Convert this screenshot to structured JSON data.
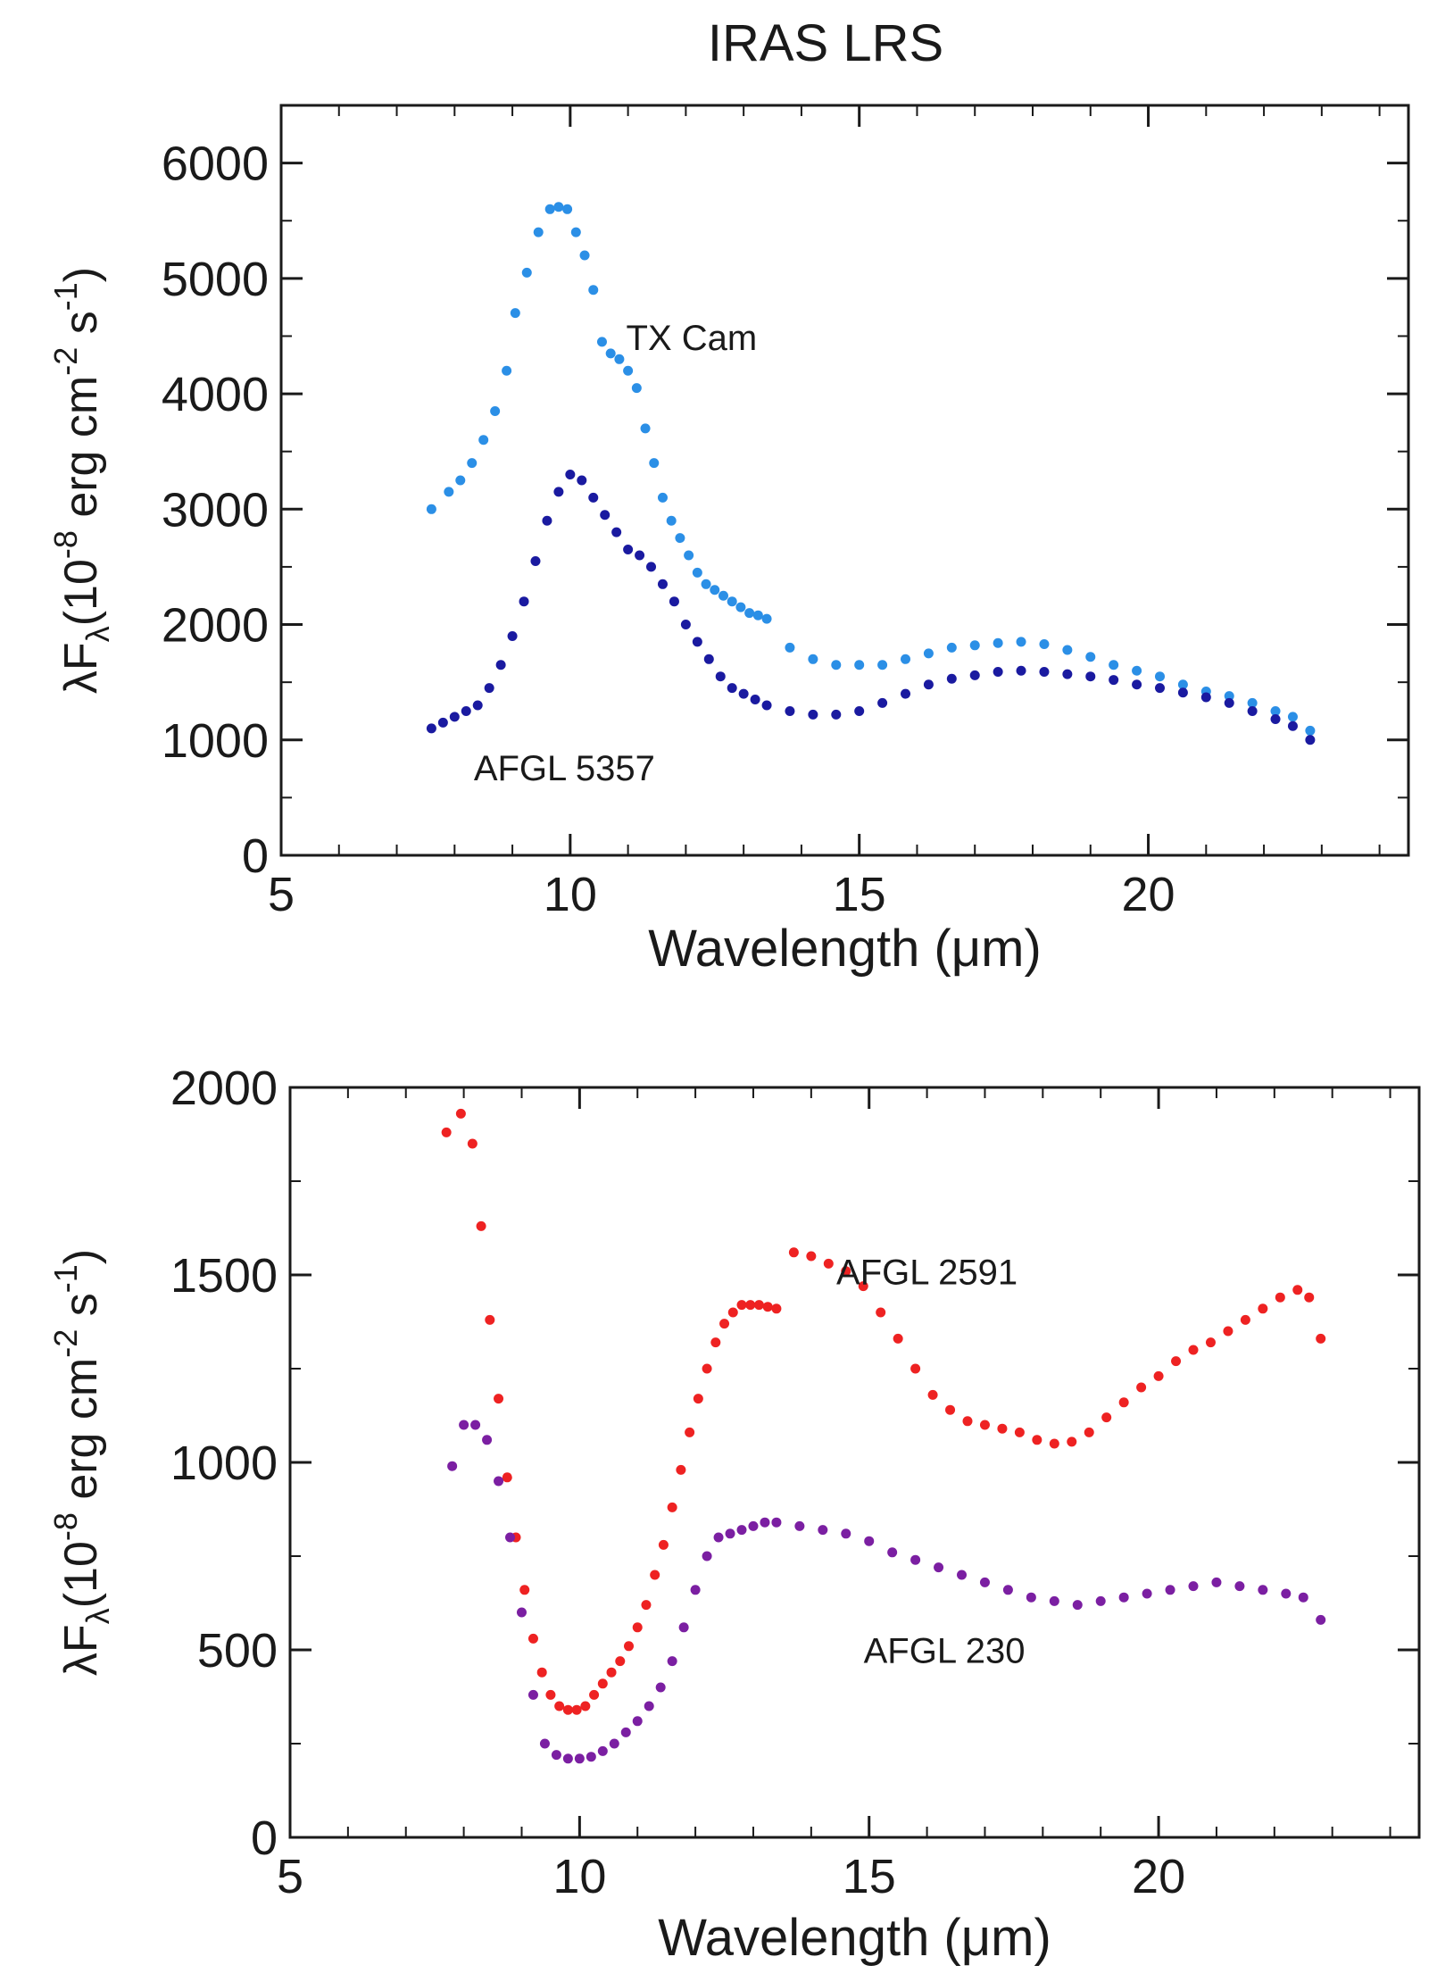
{
  "figure_title": "IRAS LRS",
  "chart_data": [
    {
      "type": "scatter",
      "xlabel": "Wavelength (μm)",
      "ylabel": {
        "prefix": "λF",
        "sub": "λ",
        "open": "(10",
        "sup1": "-8",
        "mid": " erg cm",
        "sup2": "-2",
        "mid2": " s",
        "sup3": "-1",
        "close": ")"
      },
      "xlim": [
        5,
        24.5
      ],
      "ylim": [
        0,
        6500
      ],
      "x_ticks": [
        5,
        10,
        15,
        20
      ],
      "y_ticks": [
        0,
        1000,
        2000,
        3000,
        4000,
        5000,
        6000
      ],
      "x_minor": 1,
      "y_minor": 500,
      "series": [
        {
          "name": "TX Cam",
          "color": "#2b8fe6",
          "x": [
            7.6,
            7.9,
            8.1,
            8.3,
            8.5,
            8.7,
            8.9,
            9.05,
            9.25,
            9.45,
            9.65,
            9.8,
            9.95,
            10.1,
            10.25,
            10.4,
            10.55,
            10.7,
            10.85,
            11.0,
            11.15,
            11.3,
            11.45,
            11.6,
            11.75,
            11.9,
            12.05,
            12.2,
            12.35,
            12.5,
            12.65,
            12.8,
            12.95,
            13.1,
            13.25,
            13.4,
            13.8,
            14.2,
            14.6,
            15.0,
            15.4,
            15.8,
            16.2,
            16.6,
            17.0,
            17.4,
            17.8,
            18.2,
            18.6,
            19.0,
            19.4,
            19.8,
            20.2,
            20.6,
            21.0,
            21.4,
            21.8,
            22.2,
            22.5,
            22.8
          ],
          "y": [
            3000,
            3150,
            3250,
            3400,
            3600,
            3850,
            4200,
            4700,
            5050,
            5400,
            5600,
            5620,
            5600,
            5400,
            5200,
            4900,
            4450,
            4350,
            4300,
            4200,
            4050,
            3700,
            3400,
            3100,
            2900,
            2750,
            2600,
            2450,
            2350,
            2300,
            2250,
            2200,
            2150,
            2100,
            2080,
            2050,
            1800,
            1700,
            1650,
            1650,
            1650,
            1700,
            1750,
            1800,
            1820,
            1840,
            1850,
            1830,
            1780,
            1720,
            1650,
            1600,
            1550,
            1480,
            1420,
            1380,
            1320,
            1250,
            1200,
            1080
          ]
        },
        {
          "name": "AFGL 5357",
          "color": "#1a1aa0",
          "x": [
            7.6,
            7.8,
            8.0,
            8.2,
            8.4,
            8.6,
            8.8,
            9.0,
            9.2,
            9.4,
            9.6,
            9.8,
            10.0,
            10.2,
            10.4,
            10.6,
            10.8,
            11.0,
            11.2,
            11.4,
            11.6,
            11.8,
            12.0,
            12.2,
            12.4,
            12.6,
            12.8,
            13.0,
            13.2,
            13.4,
            13.8,
            14.2,
            14.6,
            15.0,
            15.4,
            15.8,
            16.2,
            16.6,
            17.0,
            17.4,
            17.8,
            18.2,
            18.6,
            19.0,
            19.4,
            19.8,
            20.2,
            20.6,
            21.0,
            21.4,
            21.8,
            22.2,
            22.5,
            22.8
          ],
          "y": [
            1100,
            1150,
            1200,
            1250,
            1300,
            1450,
            1650,
            1900,
            2200,
            2550,
            2900,
            3150,
            3300,
            3250,
            3100,
            2950,
            2800,
            2650,
            2600,
            2500,
            2350,
            2200,
            2000,
            1850,
            1700,
            1550,
            1450,
            1400,
            1350,
            1300,
            1250,
            1220,
            1220,
            1250,
            1320,
            1400,
            1480,
            1530,
            1560,
            1590,
            1600,
            1590,
            1570,
            1550,
            1520,
            1480,
            1450,
            1410,
            1370,
            1320,
            1250,
            1180,
            1120,
            1000
          ]
        }
      ],
      "annotations": [
        {
          "text": "TX Cam",
          "x": 12.1,
          "y": 4380
        },
        {
          "text": "AFGL 5357",
          "x": 9.9,
          "y": 650
        }
      ]
    },
    {
      "type": "scatter",
      "xlabel": "Wavelength (μm)",
      "ylabel": {
        "prefix": "λF",
        "sub": "λ",
        "open": "(10",
        "sup1": "-8",
        "mid": " erg cm",
        "sup2": "-2",
        "mid2": " s",
        "sup3": "-1",
        "close": ")"
      },
      "xlim": [
        5,
        24.5
      ],
      "ylim": [
        0,
        2000
      ],
      "x_ticks": [
        5,
        10,
        15,
        20
      ],
      "y_ticks": [
        0,
        500,
        1000,
        1500,
        2000
      ],
      "x_minor": 1,
      "y_minor": 250,
      "series": [
        {
          "name": "AFGL 2591",
          "color": "#ee2222",
          "x": [
            7.7,
            7.95,
            8.15,
            8.3,
            8.45,
            8.6,
            8.75,
            8.9,
            9.05,
            9.2,
            9.35,
            9.5,
            9.65,
            9.8,
            9.95,
            10.1,
            10.25,
            10.4,
            10.55,
            10.7,
            10.85,
            11.0,
            11.15,
            11.3,
            11.45,
            11.6,
            11.75,
            11.9,
            12.05,
            12.2,
            12.35,
            12.5,
            12.65,
            12.8,
            12.95,
            13.1,
            13.25,
            13.4,
            13.7,
            14.0,
            14.3,
            14.6,
            14.9,
            15.2,
            15.5,
            15.8,
            16.1,
            16.4,
            16.7,
            17.0,
            17.3,
            17.6,
            17.9,
            18.2,
            18.5,
            18.8,
            19.1,
            19.4,
            19.7,
            20.0,
            20.3,
            20.6,
            20.9,
            21.2,
            21.5,
            21.8,
            22.1,
            22.4,
            22.6,
            22.8
          ],
          "y": [
            1880,
            1930,
            1850,
            1630,
            1380,
            1170,
            960,
            800,
            660,
            530,
            440,
            380,
            350,
            340,
            340,
            350,
            380,
            410,
            440,
            470,
            510,
            560,
            620,
            700,
            780,
            880,
            980,
            1080,
            1170,
            1250,
            1320,
            1370,
            1400,
            1420,
            1420,
            1420,
            1415,
            1410,
            1560,
            1550,
            1530,
            1510,
            1470,
            1400,
            1330,
            1250,
            1180,
            1140,
            1110,
            1100,
            1090,
            1080,
            1060,
            1050,
            1055,
            1080,
            1120,
            1160,
            1200,
            1230,
            1270,
            1300,
            1320,
            1350,
            1380,
            1410,
            1440,
            1460,
            1440,
            1330
          ]
        },
        {
          "name": "AFGL 230",
          "color": "#7b1fa2",
          "x": [
            7.8,
            8.0,
            8.2,
            8.4,
            8.6,
            8.8,
            9.0,
            9.2,
            9.4,
            9.6,
            9.8,
            10.0,
            10.2,
            10.4,
            10.6,
            10.8,
            11.0,
            11.2,
            11.4,
            11.6,
            11.8,
            12.0,
            12.2,
            12.4,
            12.6,
            12.8,
            13.0,
            13.2,
            13.4,
            13.8,
            14.2,
            14.6,
            15.0,
            15.4,
            15.8,
            16.2,
            16.6,
            17.0,
            17.4,
            17.8,
            18.2,
            18.6,
            19.0,
            19.4,
            19.8,
            20.2,
            20.6,
            21.0,
            21.4,
            21.8,
            22.2,
            22.5,
            22.8
          ],
          "y": [
            990,
            1100,
            1100,
            1060,
            950,
            800,
            600,
            380,
            250,
            220,
            210,
            210,
            215,
            230,
            250,
            280,
            310,
            350,
            400,
            470,
            560,
            660,
            750,
            800,
            810,
            820,
            830,
            840,
            840,
            830,
            820,
            810,
            790,
            760,
            740,
            720,
            700,
            680,
            660,
            640,
            630,
            620,
            630,
            640,
            650,
            660,
            670,
            680,
            670,
            660,
            650,
            640,
            580
          ]
        }
      ],
      "annotations": [
        {
          "text": "AFGL 2591",
          "x": 16.0,
          "y": 1475
        },
        {
          "text": "AFGL 230",
          "x": 16.3,
          "y": 465
        }
      ]
    }
  ]
}
